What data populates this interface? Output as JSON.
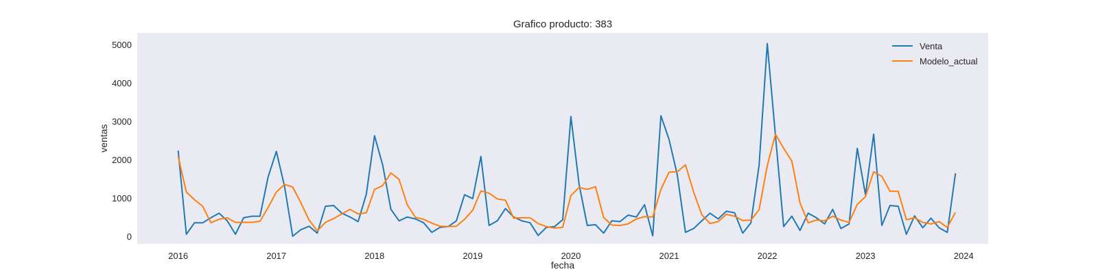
{
  "chart_data": {
    "type": "line",
    "title": "Grafico producto: 383",
    "xlabel": "fecha",
    "ylabel": "ventas",
    "x_start": "2016-01",
    "x_frequency": "monthly",
    "xlim": [
      "2015-08",
      "2024-04"
    ],
    "ylim": [
      -200,
      5300
    ],
    "x_ticks": [
      "2016",
      "2017",
      "2018",
      "2019",
      "2020",
      "2021",
      "2022",
      "2023",
      "2024"
    ],
    "y_ticks": [
      0,
      1000,
      2000,
      3000,
      4000,
      5000
    ],
    "grid": false,
    "legend": "top-right",
    "background": "#eaeaf2",
    "series": [
      {
        "name": "Venta",
        "color": "#1f77b4",
        "values": [
          2230,
          50,
          350,
          350,
          480,
          600,
          400,
          50,
          480,
          520,
          520,
          1550,
          2210,
          1300,
          0,
          170,
          260,
          80,
          780,
          800,
          600,
          500,
          380,
          1100,
          2620,
          1850,
          700,
          400,
          500,
          450,
          350,
          100,
          230,
          250,
          400,
          1080,
          980,
          2080,
          280,
          400,
          720,
          500,
          400,
          350,
          20,
          230,
          250,
          430,
          3120,
          1350,
          280,
          300,
          80,
          400,
          380,
          550,
          500,
          820,
          10,
          3140,
          2520,
          1600,
          100,
          200,
          400,
          600,
          450,
          650,
          610,
          80,
          350,
          1850,
          5020,
          2620,
          250,
          520,
          150,
          600,
          480,
          320,
          700,
          200,
          320,
          2290,
          1080,
          2660,
          280,
          800,
          780,
          50,
          530,
          220,
          470,
          220,
          100,
          1640
        ]
      },
      {
        "name": "Modelo_actual",
        "color": "#ff7f0e",
        "values": [
          2080,
          1150,
          950,
          780,
          350,
          440,
          480,
          360,
          360,
          360,
          390,
          750,
          1150,
          1350,
          1280,
          870,
          420,
          140,
          360,
          460,
          580,
          700,
          580,
          610,
          1220,
          1320,
          1650,
          1480,
          820,
          490,
          440,
          340,
          260,
          250,
          260,
          440,
          680,
          1180,
          1120,
          970,
          940,
          470,
          480,
          480,
          330,
          250,
          210,
          230,
          1060,
          1270,
          1220,
          1290,
          490,
          290,
          280,
          320,
          450,
          510,
          500,
          1220,
          1670,
          1680,
          1860,
          1150,
          560,
          330,
          380,
          570,
          520,
          410,
          420,
          690,
          1840,
          2660,
          2290,
          1960,
          870,
          350,
          420,
          400,
          520,
          420,
          360,
          830,
          1030,
          1680,
          1560,
          1170,
          1170,
          430,
          480,
          360,
          320,
          380,
          230,
          620
        ]
      }
    ]
  }
}
